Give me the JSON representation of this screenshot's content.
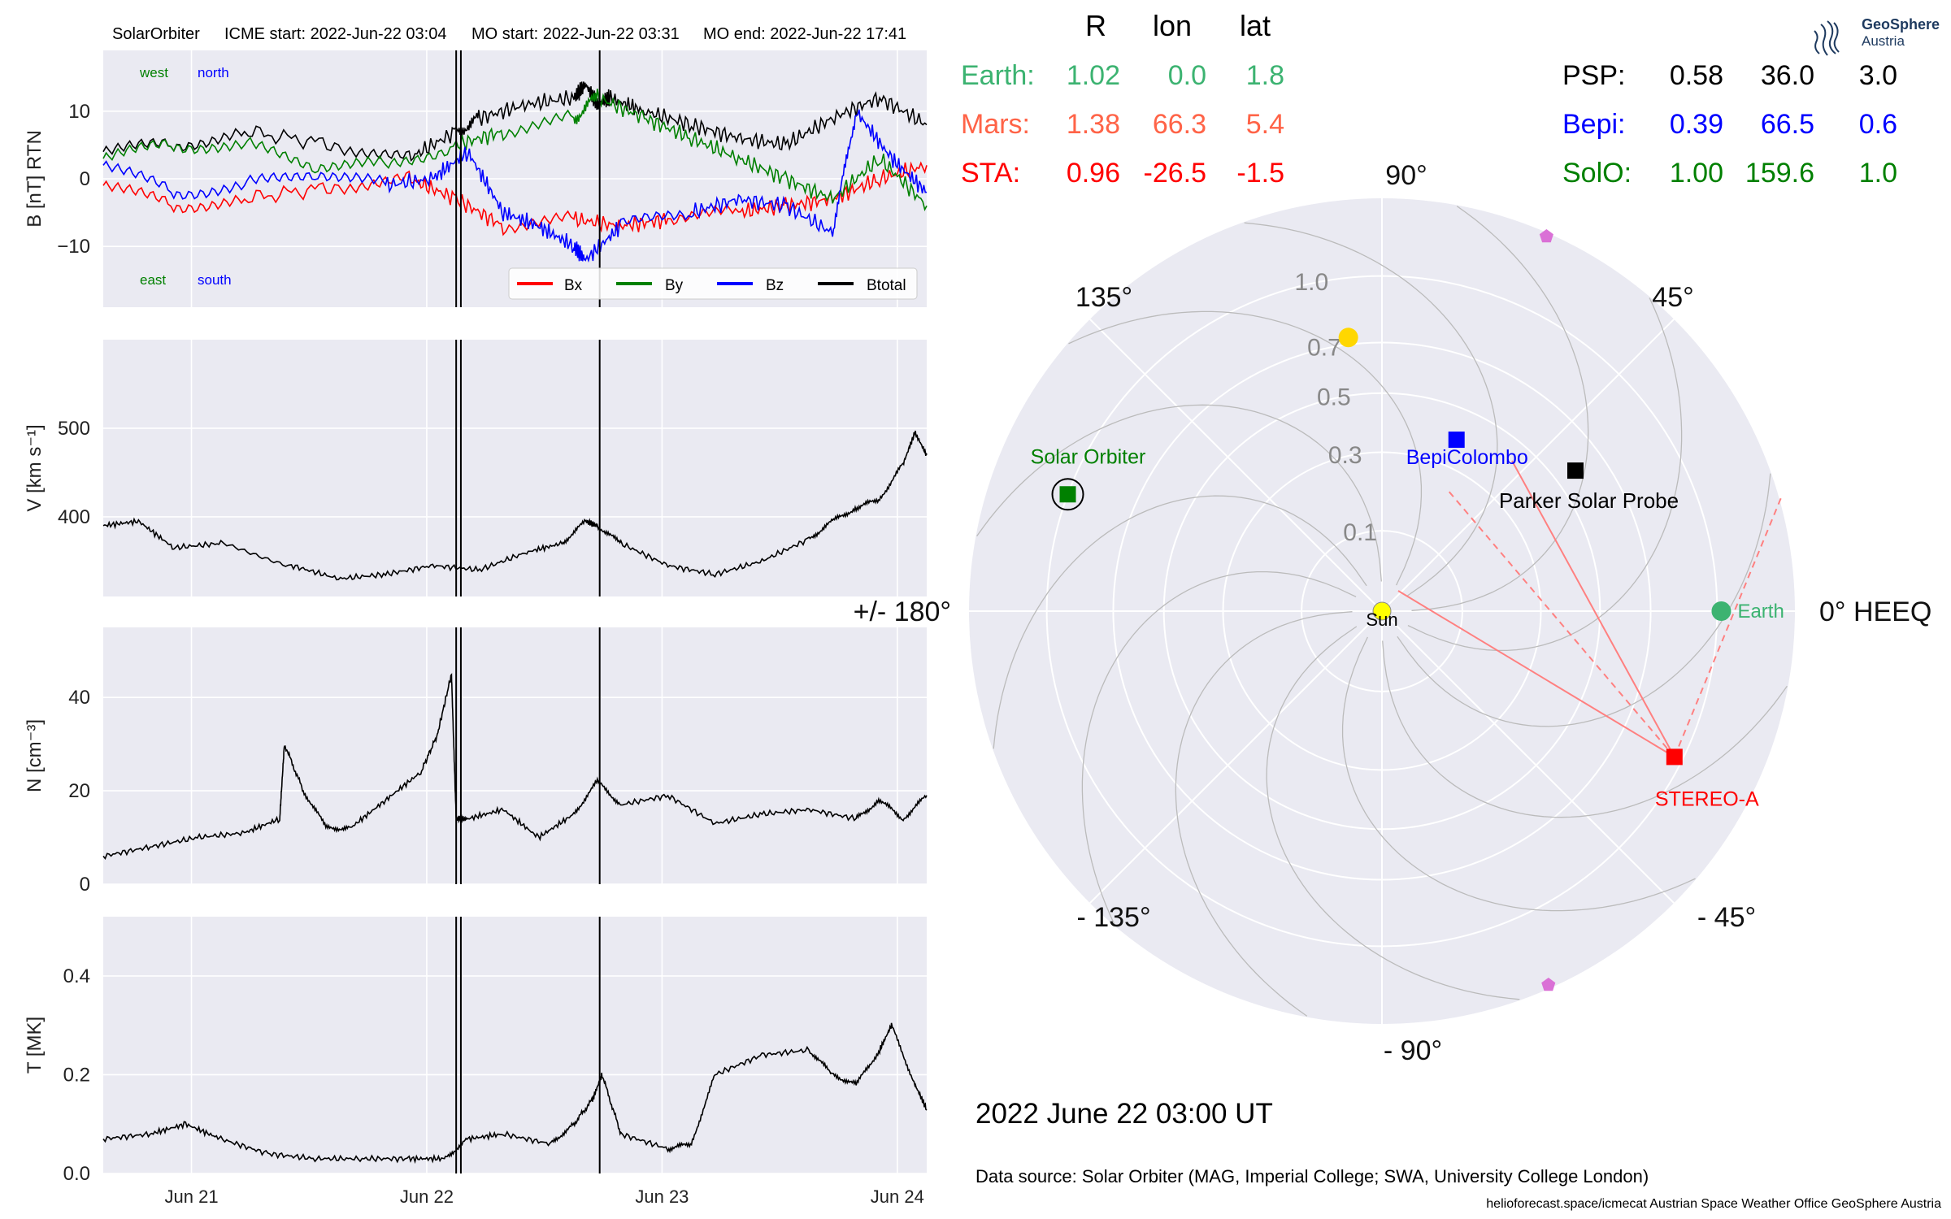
{
  "header": {
    "spacecraft": "SolarOrbiter",
    "icme_start": "ICME start: 2022-Jun-22 03:04",
    "mo_start": "MO start: 2022-Jun-22 03:31",
    "mo_end": "MO end: 2022-Jun-22 17:41"
  },
  "colors": {
    "bx": "#ff0000",
    "by": "#008000",
    "bz": "#0000ff",
    "btotal": "#000000",
    "panel_bg": "#eaeaf2",
    "earth": "#3cb371",
    "mars": "#ff6347",
    "sta": "#ff0000",
    "psp": "#000000",
    "bepi": "#0000ff",
    "solo": "#008000",
    "sun": "#ffff00",
    "mercury_venus": "#ffd700",
    "planet_pentagon": "#da70d6"
  },
  "chart_data": [
    {
      "type": "line",
      "panel": "B",
      "ylabel": "B [nT] RTN",
      "ylim": [
        -19,
        19
      ],
      "yticks": [
        -10,
        0,
        10
      ],
      "xlim": [
        0,
        3.5
      ],
      "xticks": [
        {
          "x": 0.375,
          "label": "Jun 21"
        },
        {
          "x": 1.375,
          "label": "Jun 22"
        },
        {
          "x": 2.375,
          "label": "Jun 23"
        },
        {
          "x": 3.375,
          "label": "Jun 24"
        }
      ],
      "annotations": {
        "top_left_1": "west",
        "top_left_2": "north",
        "bottom_left_1": "east",
        "bottom_left_2": "south"
      },
      "event_lines": [
        1.5,
        1.52,
        2.11
      ],
      "legend": {
        "placement": "lower-right",
        "entries": [
          "Bx",
          "By",
          "Bz",
          "Btotal"
        ]
      },
      "series": [
        {
          "name": "Btotal",
          "color": "#000000",
          "x": [
            0,
            0.3,
            0.6,
            1.0,
            1.3,
            1.5,
            1.6,
            1.8,
            2.0,
            2.05,
            2.1,
            2.15,
            2.3,
            2.5,
            2.7,
            2.9,
            3.1,
            3.3,
            3.5
          ],
          "y": [
            4,
            5,
            7,
            5,
            3,
            7,
            9,
            11,
            12,
            14,
            11,
            12,
            10,
            8,
            6,
            5,
            9,
            12,
            8
          ]
        },
        {
          "name": "Bx",
          "color": "#ff0000",
          "x": [
            0,
            0.3,
            0.6,
            1.0,
            1.3,
            1.5,
            1.7,
            2.0,
            2.2,
            2.4,
            2.7,
            2.9,
            3.1,
            3.3,
            3.5
          ],
          "y": [
            -1,
            -4,
            -3,
            -1,
            0,
            -3,
            -7,
            -6,
            -7,
            -6,
            -5,
            -4,
            -3,
            0,
            2
          ]
        },
        {
          "name": "By",
          "color": "#008000",
          "x": [
            0,
            0.3,
            0.6,
            0.9,
            1.2,
            1.5,
            1.7,
            2.0,
            2.1,
            2.3,
            2.5,
            2.7,
            2.9,
            3.1,
            3.3,
            3.5
          ],
          "y": [
            3,
            5,
            5,
            2,
            2,
            5,
            7,
            9,
            12,
            9,
            6,
            3,
            0,
            -3,
            3,
            -4
          ]
        },
        {
          "name": "Bz",
          "color": "#0000ff",
          "x": [
            0,
            0.3,
            0.6,
            0.9,
            1.2,
            1.4,
            1.55,
            1.7,
            1.85,
            2.0,
            2.05,
            2.2,
            2.5,
            2.7,
            2.9,
            3.1,
            3.2,
            3.35,
            3.5
          ],
          "y": [
            2,
            -2,
            -1,
            1,
            -1,
            0,
            4,
            -5,
            -7,
            -10,
            -12,
            -7,
            -5,
            -3,
            -4,
            -8,
            10,
            3,
            -2
          ]
        }
      ]
    },
    {
      "type": "line",
      "panel": "V",
      "ylabel": "V [km s⁻¹]",
      "ylim": [
        310,
        600
      ],
      "yticks": [
        400,
        500
      ],
      "xlim": [
        0,
        3.5
      ],
      "event_lines": [
        1.5,
        1.52,
        2.11
      ],
      "series": [
        {
          "name": "V",
          "color": "#000000",
          "x": [
            0,
            0.15,
            0.3,
            0.5,
            0.8,
            1.0,
            1.2,
            1.4,
            1.6,
            1.8,
            1.95,
            2.05,
            2.1,
            2.2,
            2.4,
            2.6,
            2.8,
            3.0,
            3.1,
            3.2,
            3.3,
            3.4,
            3.45,
            3.5
          ],
          "y": [
            390,
            395,
            365,
            370,
            345,
            330,
            335,
            345,
            340,
            360,
            370,
            395,
            390,
            370,
            345,
            335,
            350,
            375,
            395,
            410,
            420,
            460,
            495,
            470
          ]
        }
      ]
    },
    {
      "type": "line",
      "panel": "N",
      "ylabel": "N [cm⁻³]",
      "ylim": [
        0,
        55
      ],
      "yticks": [
        0,
        20,
        40
      ],
      "xlim": [
        0,
        3.5
      ],
      "event_lines": [
        1.5,
        1.52,
        2.11
      ],
      "series": [
        {
          "name": "N",
          "color": "#000000",
          "x": [
            0,
            0.2,
            0.4,
            0.6,
            0.75,
            0.77,
            0.85,
            0.95,
            1.05,
            1.2,
            1.35,
            1.42,
            1.48,
            1.5,
            1.55,
            1.7,
            1.85,
            2.0,
            2.1,
            2.2,
            2.4,
            2.6,
            2.8,
            3.0,
            3.2,
            3.3,
            3.4,
            3.5
          ],
          "y": [
            6,
            8,
            10,
            11,
            14,
            30,
            20,
            12,
            12,
            18,
            24,
            32,
            45,
            14,
            14,
            16,
            10,
            15,
            22,
            17,
            19,
            13,
            15,
            16,
            14,
            18,
            14,
            19
          ]
        }
      ]
    },
    {
      "type": "line",
      "panel": "T",
      "ylabel": "T [MK]",
      "ylim": [
        0,
        0.52
      ],
      "yticks": [
        0.0,
        0.2,
        0.4
      ],
      "xlim": [
        0,
        3.5
      ],
      "event_lines": [
        1.5,
        1.52,
        2.11
      ],
      "series": [
        {
          "name": "T",
          "color": "#000000",
          "x": [
            0,
            0.2,
            0.35,
            0.5,
            0.7,
            0.9,
            1.1,
            1.3,
            1.45,
            1.55,
            1.7,
            1.9,
            2.0,
            2.08,
            2.12,
            2.2,
            2.4,
            2.5,
            2.6,
            2.8,
            3.0,
            3.1,
            3.2,
            3.3,
            3.35,
            3.45,
            3.5
          ],
          "y": [
            0.07,
            0.08,
            0.1,
            0.07,
            0.04,
            0.03,
            0.03,
            0.03,
            0.03,
            0.07,
            0.08,
            0.06,
            0.1,
            0.15,
            0.2,
            0.08,
            0.05,
            0.06,
            0.2,
            0.24,
            0.25,
            0.2,
            0.18,
            0.25,
            0.3,
            0.18,
            0.13
          ]
        }
      ]
    }
  ],
  "positions_table": {
    "headers": [
      "R",
      "lon",
      "lat"
    ],
    "left_rows": [
      {
        "name": "Earth:",
        "r": "1.02",
        "lon": "0.0",
        "lat": "1.8",
        "color": "#3cb371"
      },
      {
        "name": "Mars:",
        "r": "1.38",
        "lon": "66.3",
        "lat": "5.4",
        "color": "#ff6347"
      },
      {
        "name": "STA:",
        "r": "0.96",
        "lon": "-26.5",
        "lat": "-1.5",
        "color": "#ff0000"
      }
    ],
    "right_rows": [
      {
        "name": "PSP:",
        "r": "0.58",
        "lon": "36.0",
        "lat": "3.0",
        "color": "#000000"
      },
      {
        "name": "Bepi:",
        "r": "0.39",
        "lon": "66.5",
        "lat": "0.6",
        "color": "#0000ff"
      },
      {
        "name": "SolO:",
        "r": "1.00",
        "lon": "159.6",
        "lat": "1.0",
        "color": "#008000"
      }
    ]
  },
  "polar_plot": {
    "type": "scatter",
    "angle_labels": [
      "0° HEEQ",
      "45°",
      "90°",
      "135°",
      "+/- 180°",
      "- 135°",
      "- 90°",
      "- 45°"
    ],
    "radial_labels": [
      "0.1",
      "0.3",
      "0.5",
      "0.7",
      "1.0"
    ],
    "objects": [
      {
        "label": "Sun",
        "r": 0,
        "lon": 0,
        "color": "#ffff00",
        "shape": "circle"
      },
      {
        "label": "Earth",
        "r": 1.02,
        "lon": 0.0,
        "color": "#3cb371",
        "shape": "circle"
      },
      {
        "label": "STEREO-A",
        "r": 0.96,
        "lon": -26.5,
        "color": "#ff0000",
        "shape": "square"
      },
      {
        "label": "Solar Orbiter",
        "r": 1.0,
        "lon": 159.6,
        "color": "#008000",
        "shape": "square"
      },
      {
        "label": "BepiColombo",
        "r": 0.39,
        "lon": 66.5,
        "color": "#0000ff",
        "shape": "square"
      },
      {
        "label": "Parker Solar Probe",
        "r": 0.58,
        "lon": 36.0,
        "color": "#000000",
        "shape": "square"
      },
      {
        "label": "",
        "r": 0.73,
        "lon": 97,
        "color": "#ffd700",
        "shape": "circle"
      },
      {
        "label": "",
        "r": 1.38,
        "lon": 66.3,
        "color": "#da70d6",
        "shape": "pentagon"
      },
      {
        "label": "",
        "r": 1.38,
        "lon": -66,
        "color": "#da70d6",
        "shape": "pentagon"
      }
    ]
  },
  "date_label": "2022 June 22  03:00 UT",
  "data_source": "Data source: Solar Orbiter (MAG, Imperial College; SWA, University College London)",
  "footer": "helioforecast.space/icmecat   Austrian Space Weather Office   GeoSphere Austria",
  "logo": {
    "line1": "GeoSphere",
    "line2": "Austria"
  }
}
